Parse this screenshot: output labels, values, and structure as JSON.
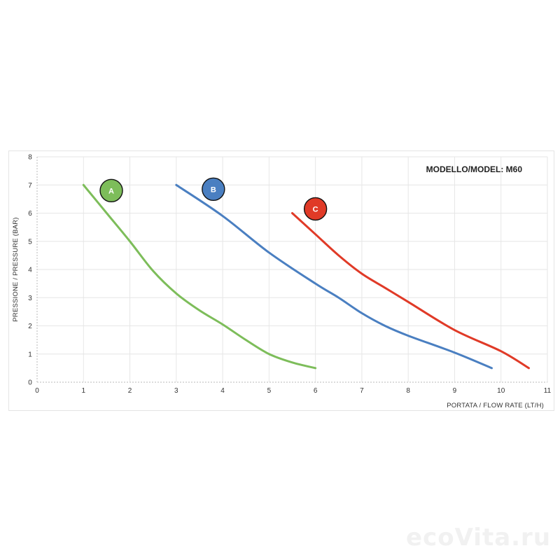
{
  "watermark": "ecoVita.ru",
  "chart_data": {
    "type": "line",
    "title": "MODELLO/MODEL: M60",
    "xlabel": "PORTATA / FLOW RATE (LT/H)",
    "ylabel": "PRESSIONE / PRESSURE (BAR)",
    "xlim": [
      0,
      11
    ],
    "ylim": [
      0,
      8
    ],
    "xticks": [
      0,
      1,
      2,
      3,
      4,
      5,
      6,
      7,
      8,
      9,
      10,
      11
    ],
    "yticks": [
      0,
      1,
      2,
      3,
      4,
      5,
      6,
      7,
      8
    ],
    "grid": true,
    "series": [
      {
        "name": "A",
        "color": "#7dbd5a",
        "x": [
          1.0,
          1.5,
          2.0,
          2.5,
          3.0,
          3.5,
          4.0,
          4.5,
          5.0,
          5.5,
          6.0
        ],
        "y": [
          7.0,
          6.0,
          5.0,
          3.95,
          3.15,
          2.55,
          2.05,
          1.5,
          1.0,
          0.7,
          0.5
        ]
      },
      {
        "name": "B",
        "color": "#4a7fc1",
        "x": [
          3.0,
          4.0,
          5.0,
          6.0,
          6.5,
          7.0,
          7.5,
          8.0,
          9.0,
          9.8
        ],
        "y": [
          7.0,
          5.9,
          4.6,
          3.5,
          3.0,
          2.45,
          2.0,
          1.65,
          1.05,
          0.5
        ]
      },
      {
        "name": "C",
        "color": "#e03a27",
        "x": [
          5.5,
          6.0,
          6.5,
          7.0,
          7.5,
          8.0,
          9.0,
          10.0,
          10.6
        ],
        "y": [
          6.0,
          5.25,
          4.5,
          3.85,
          3.35,
          2.85,
          1.85,
          1.1,
          0.5
        ]
      }
    ],
    "annotations": [
      {
        "label": "A",
        "color": "#7dbd5a",
        "x": 1.6,
        "y": 6.8
      },
      {
        "label": "B",
        "color": "#4a7fc1",
        "x": 3.8,
        "y": 6.85
      },
      {
        "label": "C",
        "color": "#e03a27",
        "x": 6.0,
        "y": 6.15
      }
    ]
  }
}
